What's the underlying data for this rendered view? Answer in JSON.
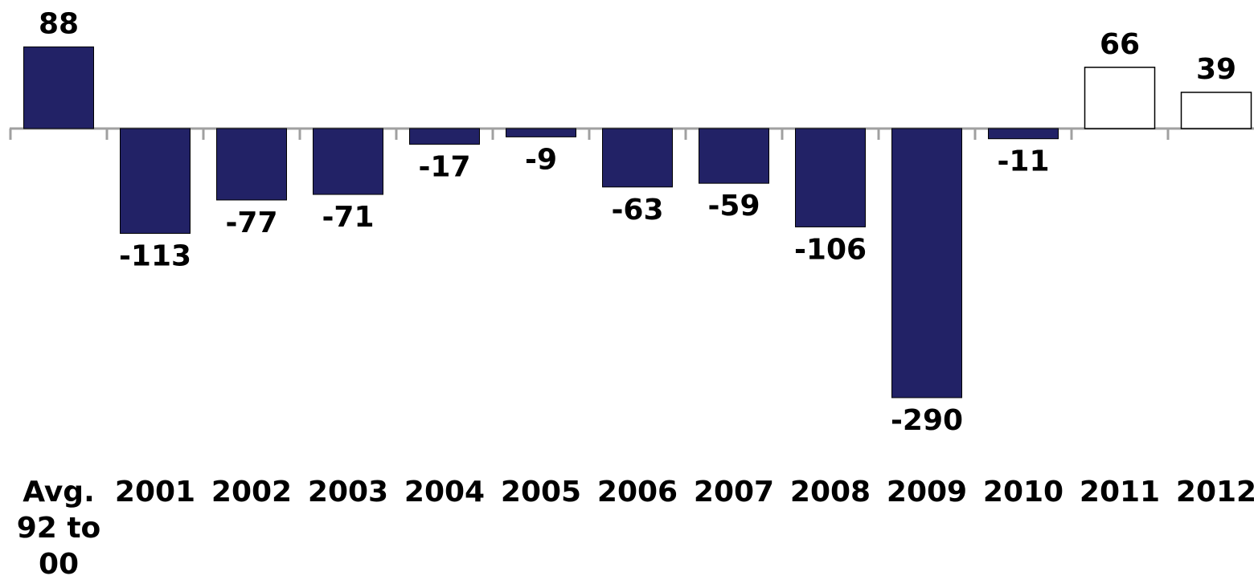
{
  "chart_data": {
    "type": "bar",
    "categories": [
      [
        "Avg.",
        "92 to",
        "00"
      ],
      [
        "2001"
      ],
      [
        "2002"
      ],
      [
        "2003"
      ],
      [
        "2004"
      ],
      [
        "2005"
      ],
      [
        "2006"
      ],
      [
        "2007"
      ],
      [
        "2008"
      ],
      [
        "2009"
      ],
      [
        "2010"
      ],
      [
        "2011"
      ],
      [
        "2012"
      ]
    ],
    "values": [
      88,
      -113,
      -77,
      -71,
      -17,
      -9,
      -63,
      -59,
      -106,
      -290,
      -11,
      66,
      39
    ],
    "value_labels": [
      "88",
      "-113",
      "-77",
      "-71",
      "-17",
      "-9",
      "-63",
      "-59",
      "-106",
      "-290",
      "-11",
      "66",
      "39"
    ],
    "bar_styles": [
      "filled",
      "filled",
      "filled",
      "filled",
      "filled",
      "filled",
      "filled",
      "filled",
      "filled",
      "filled",
      "filled",
      "outline",
      "outline"
    ],
    "colors": {
      "filled": "#222266",
      "outline_fill": "#ffffff",
      "outline_stroke": "#000000",
      "axis": "#a0a0a0"
    },
    "ylim": [
      -290,
      88
    ],
    "grid": false,
    "title": "",
    "xlabel": "",
    "ylabel": ""
  }
}
